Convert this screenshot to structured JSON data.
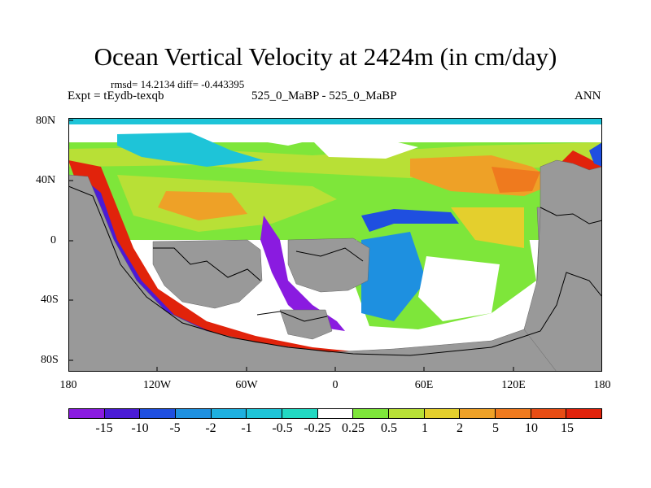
{
  "title": "Ocean Vertical Velocity at 2424m (in cm/day)",
  "stats": "rmsd= 14.2134 diff= -0.443395",
  "experiment": "Expt = tEydb-texqb",
  "case": "525_0_MaBP - 525_0_MaBP",
  "season": "ANN",
  "colors": {
    "land": "#999999",
    "ocean_zero": "#ffffff",
    "palette": [
      "#8a1be0",
      "#4a1bd6",
      "#1f4fe0",
      "#1e90e0",
      "#1ec4d8",
      "#22d9c3",
      "#ffffff",
      "#7ee63a",
      "#b8e036",
      "#e4cf2d",
      "#eea127",
      "#ef7a1e",
      "#e84d14",
      "#e1230b"
    ]
  },
  "map": {
    "y_ticks": [
      "80N",
      "40N",
      "0",
      "40S",
      "80S"
    ],
    "x_ticks": [
      "180",
      "120W",
      "60W",
      "0",
      "60E",
      "120E",
      "180"
    ]
  },
  "colorbar": {
    "labels": [
      "-15",
      "-10",
      "-5",
      "-2",
      "-1",
      "-0.5",
      "-0.25",
      "0.25",
      "0.5",
      "1",
      "2",
      "5",
      "10",
      "15"
    ]
  }
}
